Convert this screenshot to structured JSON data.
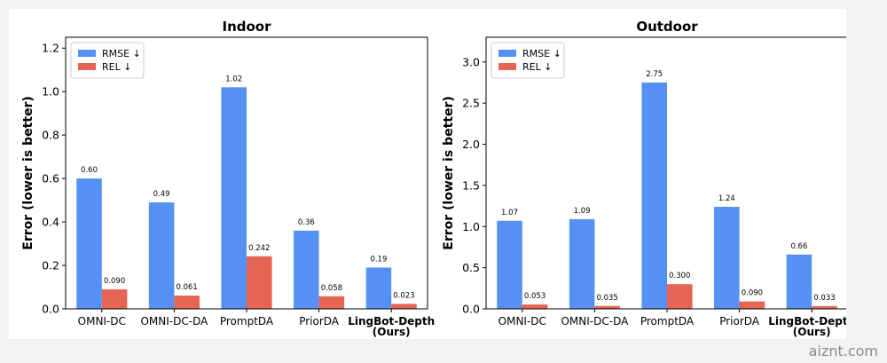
{
  "colors": {
    "rmse": "#5591f5",
    "rel": "#e56453"
  },
  "watermark": "aiznt.com",
  "chart_data": [
    {
      "type": "bar",
      "title": "Indoor",
      "ylabel": "Error (lower is better)",
      "xlabel": "",
      "ylim": [
        0,
        1.25
      ],
      "yticks": [
        "0.0",
        "0.2",
        "0.4",
        "0.6",
        "0.8",
        "1.0",
        "1.2"
      ],
      "ytick_values": [
        0,
        0.2,
        0.4,
        0.6,
        0.8,
        1.0,
        1.2
      ],
      "categories": [
        [
          "OMNI-DC"
        ],
        [
          "OMNI-DC-DA"
        ],
        [
          "PromptDA"
        ],
        [
          "PriorDA"
        ],
        [
          "LingBot-Depth",
          "(Ours)"
        ]
      ],
      "bold_category_index": 4,
      "legend_position": "upper left",
      "grid": false,
      "series": [
        {
          "name": "RMSE ↓",
          "values": [
            0.6,
            0.49,
            1.02,
            0.36,
            0.19
          ],
          "labels": [
            "0.60",
            "0.49",
            "1.02",
            "0.36",
            "0.19"
          ]
        },
        {
          "name": "REL ↓",
          "values": [
            0.09,
            0.061,
            0.242,
            0.058,
            0.023
          ],
          "labels": [
            "0.090",
            "0.061",
            "0.242",
            "0.058",
            "0.023"
          ]
        }
      ]
    },
    {
      "type": "bar",
      "title": "Outdoor",
      "ylabel": "Error (lower is better)",
      "xlabel": "",
      "ylim": [
        0,
        3.3
      ],
      "yticks": [
        "0.0",
        "0.5",
        "1.0",
        "1.5",
        "2.0",
        "2.5",
        "3.0"
      ],
      "ytick_values": [
        0,
        0.5,
        1.0,
        1.5,
        2.0,
        2.5,
        3.0
      ],
      "categories": [
        [
          "OMNI-DC"
        ],
        [
          "OMNI-DC-DA"
        ],
        [
          "PromptDA"
        ],
        [
          "PriorDA"
        ],
        [
          "LingBot-Depth",
          "(Ours)"
        ]
      ],
      "bold_category_index": 4,
      "legend_position": "upper left",
      "grid": false,
      "series": [
        {
          "name": "RMSE ↓",
          "values": [
            1.07,
            1.09,
            2.75,
            1.24,
            0.66
          ],
          "labels": [
            "1.07",
            "1.09",
            "2.75",
            "1.24",
            "0.66"
          ]
        },
        {
          "name": "REL ↓",
          "values": [
            0.053,
            0.035,
            0.3,
            0.09,
            0.033
          ],
          "labels": [
            "0.053",
            "0.035",
            "0.300",
            "0.090",
            "0.033"
          ]
        }
      ]
    }
  ]
}
